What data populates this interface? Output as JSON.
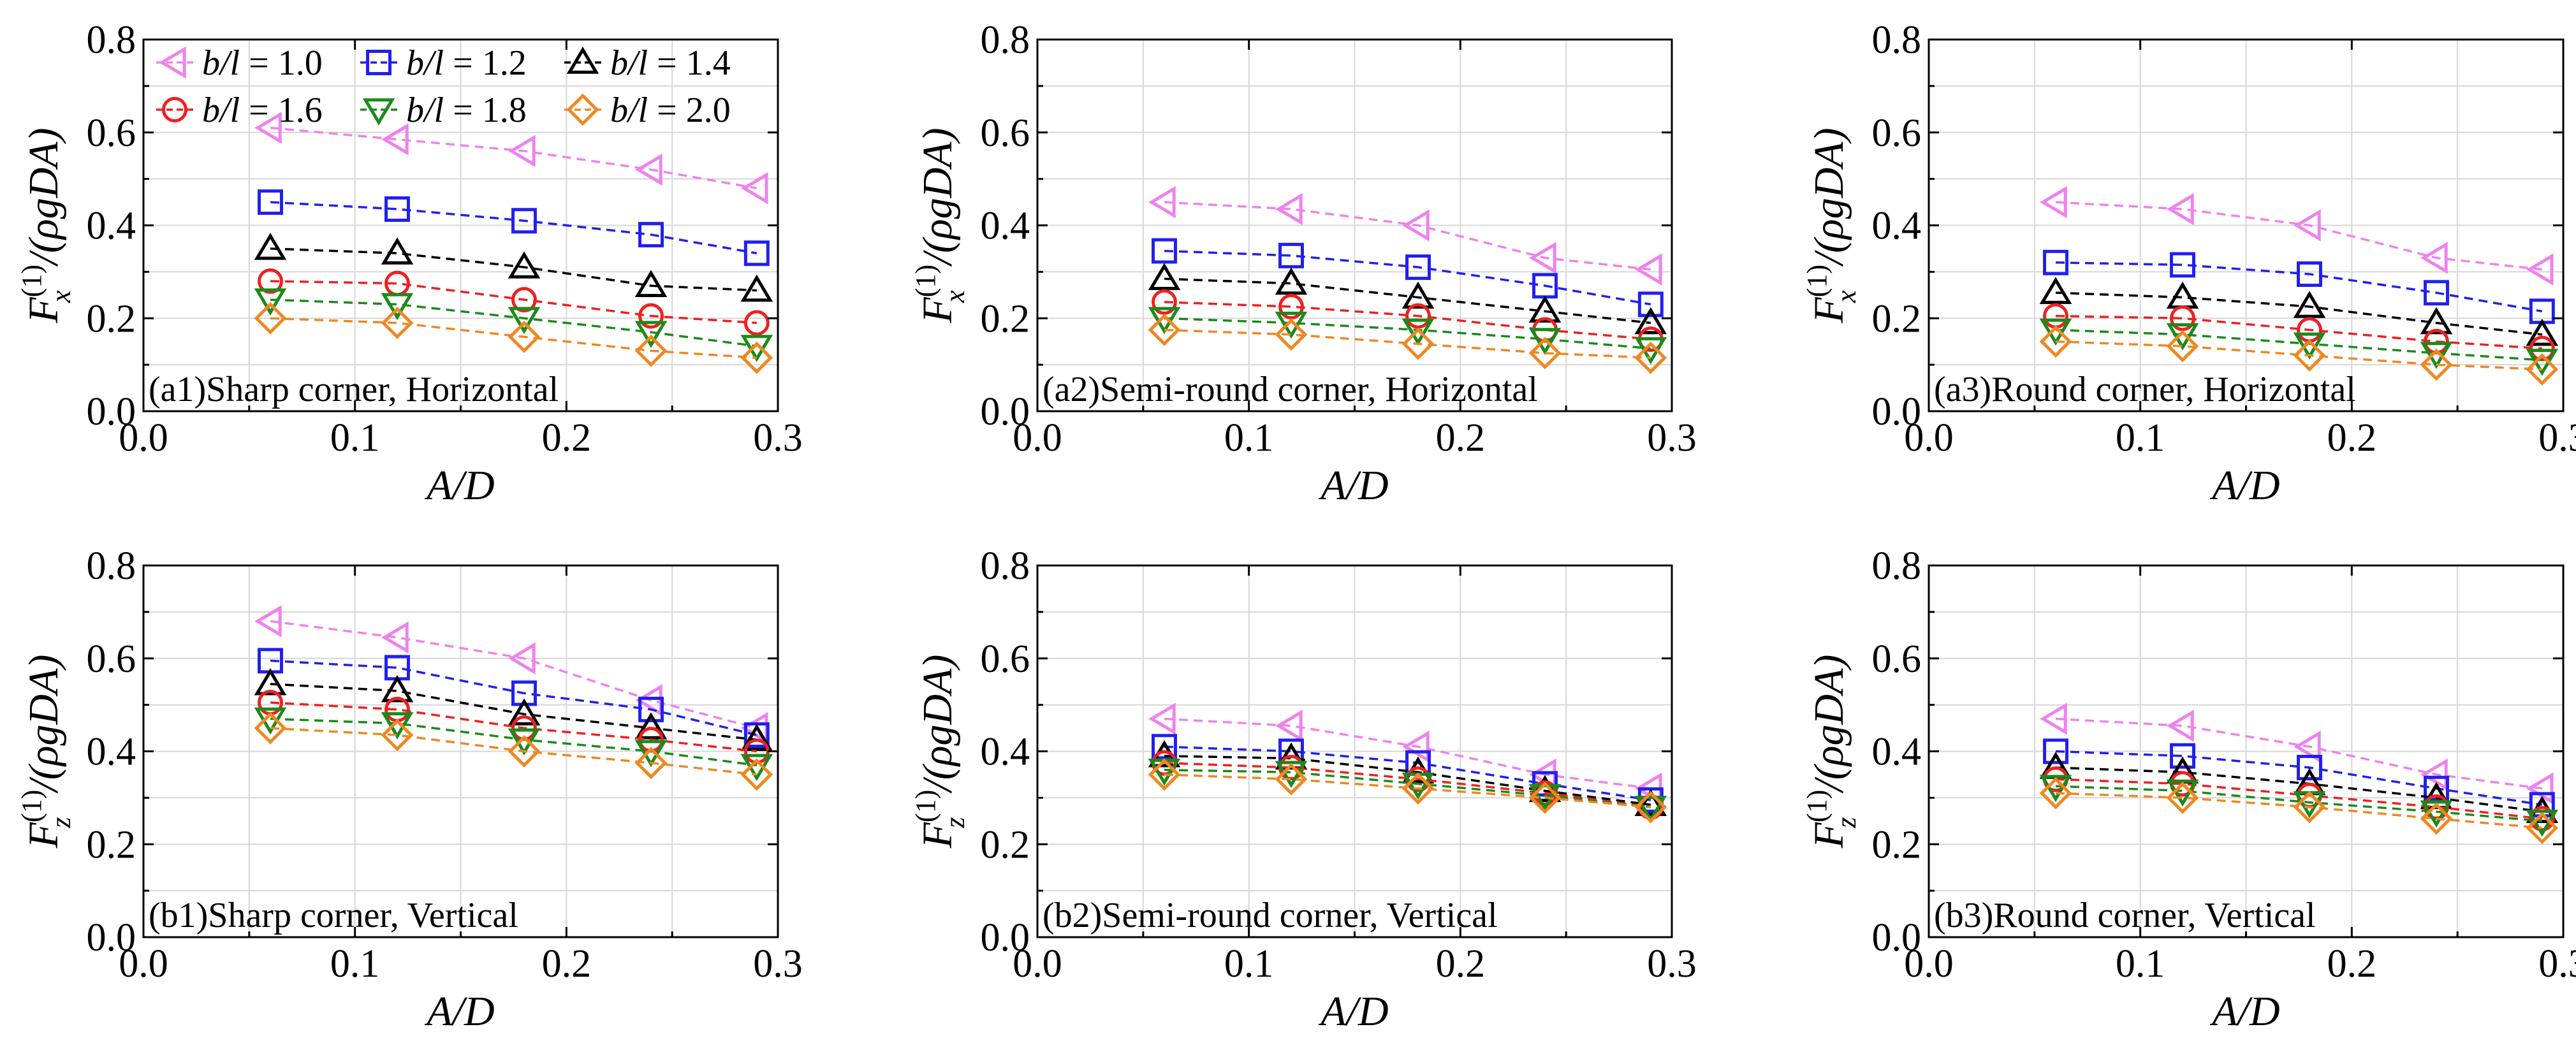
{
  "chart_data": {
    "type": "line",
    "layout": "2x3 grid",
    "shared_x": [
      0.06,
      0.12,
      0.18,
      0.24,
      0.29
    ],
    "xlabel": "A/D",
    "xlim": [
      0.0,
      0.3
    ],
    "ylim": [
      0.0,
      0.8
    ],
    "xticks": [
      "0.0",
      "0.1",
      "0.2",
      "0.3"
    ],
    "yticks": [
      "0.0",
      "0.2",
      "0.4",
      "0.6",
      "0.8"
    ],
    "legend": {
      "placement": "top-left of panel (a1)",
      "entries": [
        {
          "label": "b/l = 1.0",
          "var": "b/l",
          "eq": " = 1.0",
          "color": "#ee82ee",
          "marker": "triangle-left"
        },
        {
          "label": "b/l = 1.2",
          "var": "b/l",
          "eq": " = 1.2",
          "color": "#2020ee",
          "marker": "square"
        },
        {
          "label": "b/l = 1.4",
          "var": "b/l",
          "eq": " = 1.4",
          "color": "#000000",
          "marker": "triangle-up"
        },
        {
          "label": "b/l = 1.6",
          "var": "b/l",
          "eq": " = 1.6",
          "color": "#ee2020",
          "marker": "circle"
        },
        {
          "label": "b/l = 1.8",
          "var": "b/l",
          "eq": " = 1.8",
          "color": "#1a8a1a",
          "marker": "triangle-down"
        },
        {
          "label": "b/l = 2.0",
          "var": "b/l",
          "eq": " = 2.0",
          "color": "#ee8822",
          "marker": "diamond"
        }
      ]
    },
    "panels": [
      {
        "id": "a1",
        "annotation": "(a1)Sharp corner, Horizontal",
        "ylabel": {
          "main": "F",
          "sub": "x",
          "sup": "(1)",
          "rest": "/(ρgDA)"
        },
        "series": [
          {
            "name": "b/l = 1.0",
            "values": [
              0.61,
              0.585,
              0.56,
              0.52,
              0.48
            ]
          },
          {
            "name": "b/l = 1.2",
            "values": [
              0.45,
              0.435,
              0.41,
              0.38,
              0.34
            ]
          },
          {
            "name": "b/l = 1.4",
            "values": [
              0.35,
              0.34,
              0.31,
              0.27,
              0.26
            ]
          },
          {
            "name": "b/l = 1.6",
            "values": [
              0.28,
              0.275,
              0.24,
              0.205,
              0.19
            ]
          },
          {
            "name": "b/l = 1.8",
            "values": [
              0.24,
              0.23,
              0.2,
              0.17,
              0.14
            ]
          },
          {
            "name": "b/l = 2.0",
            "values": [
              0.2,
              0.19,
              0.16,
              0.13,
              0.115
            ]
          }
        ]
      },
      {
        "id": "a2",
        "annotation": "(a2)Semi-round corner, Horizontal",
        "ylabel": {
          "main": "F",
          "sub": "x",
          "sup": "(1)",
          "rest": "/(ρgDA)"
        },
        "series": [
          {
            "name": "b/l = 1.0",
            "values": [
              0.45,
              0.435,
              0.4,
              0.33,
              0.305
            ]
          },
          {
            "name": "b/l = 1.2",
            "values": [
              0.345,
              0.335,
              0.31,
              0.27,
              0.23
            ]
          },
          {
            "name": "b/l = 1.4",
            "values": [
              0.285,
              0.275,
              0.245,
              0.215,
              0.19
            ]
          },
          {
            "name": "b/l = 1.6",
            "values": [
              0.235,
              0.225,
              0.205,
              0.175,
              0.155
            ]
          },
          {
            "name": "b/l = 1.8",
            "values": [
              0.2,
              0.19,
              0.175,
              0.155,
              0.135
            ]
          },
          {
            "name": "b/l = 2.0",
            "values": [
              0.175,
              0.165,
              0.145,
              0.125,
              0.115
            ]
          }
        ]
      },
      {
        "id": "a3",
        "annotation": "(a3)Round corner, Horizontal",
        "ylabel": {
          "main": "F",
          "sub": "x",
          "sup": "(1)",
          "rest": "/(ρgDA)"
        },
        "series": [
          {
            "name": "b/l = 1.0",
            "values": [
              0.45,
              0.435,
              0.4,
              0.33,
              0.305
            ]
          },
          {
            "name": "b/l = 1.2",
            "values": [
              0.32,
              0.315,
              0.295,
              0.255,
              0.215
            ]
          },
          {
            "name": "b/l = 1.4",
            "values": [
              0.255,
              0.245,
              0.225,
              0.19,
              0.165
            ]
          },
          {
            "name": "b/l = 1.6",
            "values": [
              0.205,
              0.2,
              0.175,
              0.15,
              0.135
            ]
          },
          {
            "name": "b/l = 1.8",
            "values": [
              0.175,
              0.165,
              0.145,
              0.125,
              0.11
            ]
          },
          {
            "name": "b/l = 2.0",
            "values": [
              0.15,
              0.14,
              0.12,
              0.1,
              0.09
            ]
          }
        ]
      },
      {
        "id": "b1",
        "annotation": "(b1)Sharp corner, Vertical",
        "ylabel": {
          "main": "F",
          "sub": "z",
          "sup": "(1)",
          "rest": "/(ρgDA)"
        },
        "series": [
          {
            "name": "b/l = 1.0",
            "values": [
              0.68,
              0.645,
              0.6,
              0.51,
              0.45
            ]
          },
          {
            "name": "b/l = 1.2",
            "values": [
              0.595,
              0.58,
              0.525,
              0.49,
              0.435
            ]
          },
          {
            "name": "b/l = 1.4",
            "values": [
              0.545,
              0.53,
              0.48,
              0.45,
              0.425
            ]
          },
          {
            "name": "b/l = 1.6",
            "values": [
              0.505,
              0.49,
              0.45,
              0.425,
              0.4
            ]
          },
          {
            "name": "b/l = 1.8",
            "values": [
              0.47,
              0.46,
              0.425,
              0.4,
              0.37
            ]
          },
          {
            "name": "b/l = 2.0",
            "values": [
              0.45,
              0.435,
              0.4,
              0.375,
              0.35
            ]
          }
        ]
      },
      {
        "id": "b2",
        "annotation": "(b2)Semi-round corner, Vertical",
        "ylabel": {
          "main": "F",
          "sub": "z",
          "sup": "(1)",
          "rest": "/(ρgDA)"
        },
        "series": [
          {
            "name": "b/l = 1.0",
            "values": [
              0.47,
              0.455,
              0.41,
              0.35,
              0.32
            ]
          },
          {
            "name": "b/l = 1.2",
            "values": [
              0.41,
              0.4,
              0.375,
              0.33,
              0.295
            ]
          },
          {
            "name": "b/l = 1.4",
            "values": [
              0.39,
              0.385,
              0.355,
              0.315,
              0.285
            ]
          },
          {
            "name": "b/l = 1.6",
            "values": [
              0.375,
              0.365,
              0.34,
              0.31,
              0.28
            ]
          },
          {
            "name": "b/l = 1.8",
            "values": [
              0.36,
              0.355,
              0.33,
              0.305,
              0.28
            ]
          },
          {
            "name": "b/l = 2.0",
            "values": [
              0.35,
              0.34,
              0.32,
              0.3,
              0.28
            ]
          }
        ]
      },
      {
        "id": "b3",
        "annotation": "(b3)Round corner, Vertical",
        "ylabel": {
          "main": "F",
          "sub": "z",
          "sup": "(1)",
          "rest": "/(ρgDA)"
        },
        "series": [
          {
            "name": "b/l = 1.0",
            "values": [
              0.47,
              0.455,
              0.41,
              0.35,
              0.32
            ]
          },
          {
            "name": "b/l = 1.2",
            "values": [
              0.4,
              0.39,
              0.365,
              0.32,
              0.285
            ]
          },
          {
            "name": "b/l = 1.4",
            "values": [
              0.365,
              0.355,
              0.33,
              0.3,
              0.27
            ]
          },
          {
            "name": "b/l = 1.6",
            "values": [
              0.34,
              0.33,
              0.305,
              0.28,
              0.255
            ]
          },
          {
            "name": "b/l = 1.8",
            "values": [
              0.325,
              0.315,
              0.29,
              0.27,
              0.25
            ]
          },
          {
            "name": "b/l = 2.0",
            "values": [
              0.31,
              0.3,
              0.28,
              0.255,
              0.235
            ]
          }
        ]
      }
    ]
  }
}
